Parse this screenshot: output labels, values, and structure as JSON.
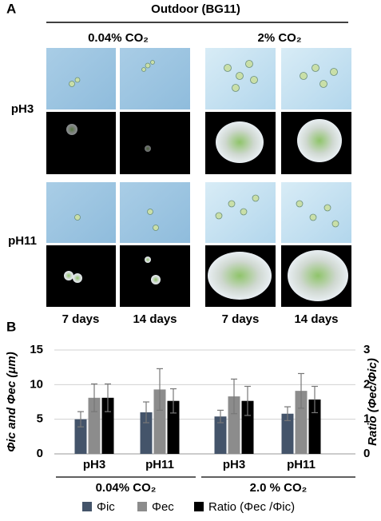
{
  "panel_a": {
    "panel_label": "A",
    "title": "Outdoor (BG11)",
    "conditions": [
      "0.04% CO₂",
      "2% CO₂"
    ],
    "rows": [
      "pH3",
      "pH11"
    ],
    "columns": [
      "7 days",
      "14 days",
      "7 days",
      "14 days"
    ]
  },
  "chart_data": {
    "type": "bar",
    "panel_label": "B",
    "y_label": "Φic and Φec (μm)",
    "y2_label": "Ratio (Φec/Φic)",
    "categories": [
      "pH3",
      "pH11",
      "pH3",
      "pH11"
    ],
    "group_labels": [
      "0.04% CO₂",
      "2.0 % CO₂"
    ],
    "series": [
      {
        "name": "Φic",
        "color": "#44546a",
        "values": [
          5.0,
          6.0,
          5.4,
          5.8
        ],
        "errors": [
          1.1,
          1.5,
          0.9,
          1.0
        ]
      },
      {
        "name": "Φec",
        "color": "#8c8c8c",
        "values": [
          8.1,
          9.3,
          8.3,
          9.1
        ],
        "errors": [
          2.0,
          3.0,
          2.5,
          2.5
        ]
      },
      {
        "name": "Ratio (Φec /Φic)",
        "color": "#000000",
        "axis": "y2",
        "values": [
          1.62,
          1.53,
          1.53,
          1.57
        ],
        "errors": [
          0.4,
          0.35,
          0.42,
          0.38
        ]
      }
    ],
    "ylim": [
      0,
      15
    ],
    "yticks": [
      0,
      5,
      10,
      15
    ],
    "y2lim": [
      0,
      3
    ],
    "y2ticks": [
      0,
      1,
      2,
      3
    ],
    "grid": true,
    "legend": "bottom"
  }
}
